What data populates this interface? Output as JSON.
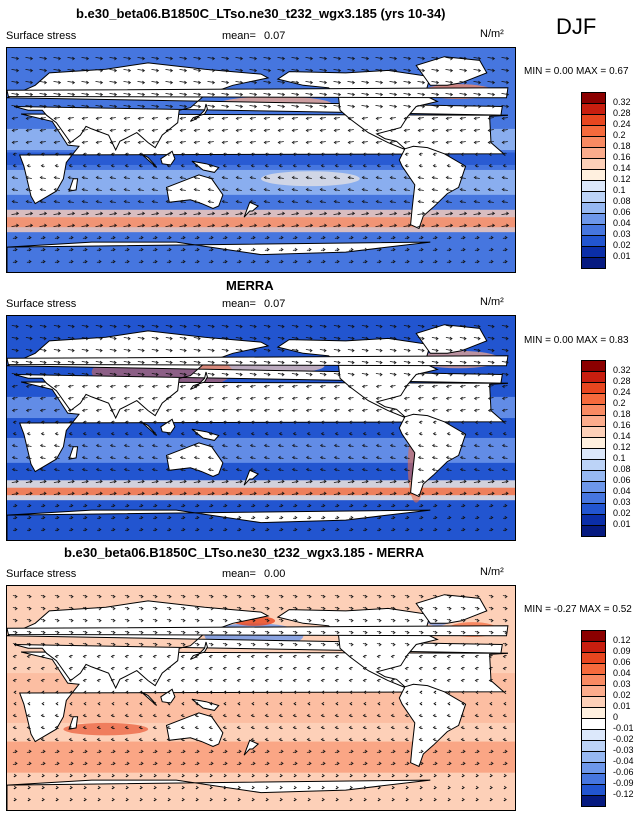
{
  "chart_data": [
    {
      "type": "heatmap",
      "title": "b.e30_beta06.B1850C_LTso.ne30_t232_wgx3.185 (yrs 10-34)",
      "left_label": "Surface stress",
      "mean_label": "mean=",
      "mean_value": "0.07",
      "units": "N/m²",
      "min_label": "MIN =",
      "min_value": "0.00",
      "max_label": "MAX =",
      "max_value": "0.67",
      "colorbar_levels": [
        "0.32",
        "0.28",
        "0.24",
        "0.2",
        "0.18",
        "0.16",
        "0.14",
        "0.12",
        "0.1",
        "0.08",
        "0.06",
        "0.04",
        "0.03",
        "0.02",
        "0.01"
      ]
    },
    {
      "type": "heatmap",
      "title": "MERRA",
      "left_label": "Surface stress",
      "mean_label": "mean=",
      "mean_value": "0.07",
      "units": "N/m²",
      "min_label": "MIN =",
      "min_value": "0.00",
      "max_label": "MAX =",
      "max_value": "0.83",
      "colorbar_levels": [
        "0.32",
        "0.28",
        "0.24",
        "0.2",
        "0.18",
        "0.16",
        "0.14",
        "0.12",
        "0.1",
        "0.08",
        "0.06",
        "0.04",
        "0.03",
        "0.02",
        "0.01"
      ]
    },
    {
      "type": "heatmap",
      "title": "b.e30_beta06.B1850C_LTso.ne30_t232_wgx3.185 - MERRA",
      "left_label": "Surface stress",
      "mean_label": "mean=",
      "mean_value": "0.00",
      "units": "N/m²",
      "min_label": "MIN =",
      "min_value": "-0.27",
      "max_label": "MAX =",
      "max_value": "0.52",
      "colorbar_levels": [
        "0.12",
        "0.09",
        "0.06",
        "0.04",
        "0.03",
        "0.02",
        "0.01",
        "0",
        "-0.01",
        "-0.02",
        "-0.03",
        "-0.04",
        "-0.06",
        "-0.09",
        "-0.12"
      ]
    }
  ],
  "season": "DJF",
  "colors": {
    "abs_scale": [
      "#8b0000",
      "#c81e0f",
      "#e8461f",
      "#f56a3c",
      "#f88a62",
      "#fbac8c",
      "#fdd0b8",
      "#fff0df",
      "#dce8fb",
      "#bcd3f7",
      "#96b8f2",
      "#6d97ea",
      "#4676df",
      "#2255d0",
      "#0b2ea8",
      "#061a80"
    ],
    "diff_scale": [
      "#8b0000",
      "#c81e0f",
      "#e8461f",
      "#f56a3c",
      "#f88a62",
      "#fbac8c",
      "#fdd0b8",
      "#fff0df",
      "#ffffff",
      "#dce8fb",
      "#bcd3f7",
      "#96b8f2",
      "#6d97ea",
      "#4676df",
      "#2255d0",
      "#061a80"
    ]
  }
}
